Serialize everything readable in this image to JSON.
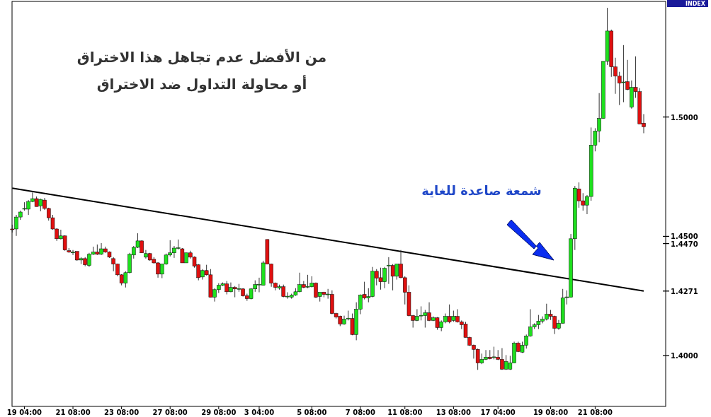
{
  "chart_data": {
    "type": "candlestick",
    "annotations": [
      "من الأفضل عدم تجاهل هذا الاختراق\nأو محاولة التداول ضد الاختراق",
      "شمعة صاعدة للغاية",
      "INDEX"
    ],
    "categories": [
      null,
      null,
      null,
      "19 04:00",
      null,
      null,
      null,
      null,
      null,
      null,
      null,
      null,
      null,
      null,
      null,
      "21 08:00",
      null,
      null,
      null,
      null,
      null,
      null,
      null,
      null,
      null,
      null,
      null,
      "23 08:00",
      null,
      null,
      null,
      null,
      null,
      null,
      null,
      null,
      null,
      null,
      null,
      "27 08:00",
      null,
      null,
      null,
      null,
      null,
      null,
      null,
      null,
      null,
      null,
      null,
      "29 08:00",
      null,
      null,
      null,
      null,
      null,
      null,
      null,
      null,
      null,
      "3 04:00",
      null,
      null,
      null,
      null,
      null,
      null,
      null,
      null,
      null,
      null,
      null,
      null,
      "5 08:00",
      null,
      null,
      null,
      null,
      null,
      null,
      null,
      null,
      null,
      null,
      null,
      "7 08:00",
      null,
      null,
      null,
      null,
      null,
      null,
      null,
      null,
      null,
      null,
      "11 08:00",
      null,
      null,
      null,
      null,
      null,
      null,
      null,
      null,
      null,
      null,
      null,
      "13 08:00",
      null,
      null,
      null,
      null,
      null,
      null,
      null,
      null,
      null,
      null,
      "17 04:00",
      null,
      null,
      null,
      null,
      null,
      null,
      null,
      null,
      null,
      null,
      null,
      null,
      "19 08:00",
      null,
      null,
      null,
      null,
      null,
      null,
      null,
      null,
      null,
      null,
      "21 08:00",
      null,
      null,
      null,
      null,
      null,
      null,
      null,
      null,
      null,
      null,
      null,
      null
    ],
    "colors": [
      "#e01010",
      "#1ee01e",
      "#1ee01e",
      "#1ee01e",
      "#1ee01e",
      "#1ee01e",
      "#e01010",
      "#1ee01e",
      "#e01010",
      "#e01010",
      "#e01010",
      "#e01010",
      "#1ee01e",
      "#e01010",
      "#e01010",
      "#1ee01e",
      "#e01010",
      "#1ee01e",
      "#e01010",
      "#1ee01e",
      "#1ee01e",
      "#e01010",
      "#1ee01e",
      "#e01010",
      "#e01010",
      "#e01010",
      "#e01010",
      "#e01010",
      "#1ee01e",
      "#1ee01e",
      "#1ee01e",
      "#1ee01e",
      "#e01010",
      "#1ee01e",
      "#e01010",
      "#e01010",
      "#e01010",
      "#1ee01e",
      "#1ee01e",
      "#1ee01e",
      "#1ee01e",
      "#1ee01e",
      "#e01010",
      "#1ee01e",
      "#e01010",
      "#e01010",
      "#e01010",
      "#1ee01e",
      "#e01010",
      "#e01010",
      "#1ee01e",
      "#1ee01e",
      "#1ee01e",
      "#e01010",
      "#1ee01e",
      "#e01010",
      "#1ee01e",
      "#e01010",
      "#e01010",
      "#1ee01e",
      "#1ee01e",
      "#1ee01e",
      "#1ee01e",
      "#e01010",
      "#e01010",
      "#e01010",
      "#1ee01e",
      "#e01010",
      "#1ee01e",
      "#1ee01e",
      "#1ee01e",
      "#1ee01e",
      "#e01010",
      "#1ee01e",
      "#1ee01e",
      "#e01010",
      "#1ee01e",
      "#e01010",
      "#1ee01e",
      "#e01010",
      "#e01010",
      "#e01010",
      "#1ee01e",
      "#1ee01e",
      "#e01010",
      "#1ee01e",
      "#1ee01e",
      "#e01010",
      "#1ee01e",
      "#1ee01e",
      "#e01010",
      "#e01010",
      "#1ee01e",
      "#1ee01e",
      "#e01010",
      "#1ee01e",
      "#e01010",
      "#e01010",
      "#e01010",
      "#e01010",
      "#1ee01e",
      "#1ee01e",
      "#1ee01e",
      "#e01010",
      "#1ee01e",
      "#e01010",
      "#1ee01e",
      "#1ee01e",
      "#e01010",
      "#1ee01e",
      "#e01010",
      "#e01010",
      "#e01010",
      "#e01010",
      "#e01010",
      "#e01010",
      "#1ee01e",
      "#1ee01e",
      "#e01010",
      "#1ee01e",
      "#e01010",
      "#e01010",
      "#1ee01e",
      "#1ee01e",
      "#1ee01e",
      "#e01010",
      "#1ee01e",
      "#1ee01e",
      "#1ee01e",
      "#1ee01e",
      "#1ee01e",
      "#1ee01e",
      "#1ee01e",
      "#e01010",
      "#e01010",
      "#1ee01e",
      "#1ee01e",
      "#1ee01e",
      "#1ee01e",
      "#1ee01e",
      "#e01010",
      "#e01010",
      "#1ee01e",
      "#1ee01e",
      "#1ee01e",
      "#1ee01e",
      "#1ee01e",
      "#1ee01e",
      "#e01010",
      "#e01010",
      "#e01010",
      "#1ee01e",
      "#e01010",
      "#1ee01e",
      "#e01010",
      "#e01010",
      "#e01010"
    ],
    "ohlc": [
      [
        1.4531,
        1.4549,
        1.4516,
        1.4528
      ],
      [
        1.4531,
        1.459,
        1.4502,
        1.4581
      ],
      [
        1.4581,
        1.4608,
        1.4569,
        1.4602
      ],
      [
        1.4614,
        1.4643,
        1.4608,
        1.4617
      ],
      [
        1.4614,
        1.4652,
        1.459,
        1.4646
      ],
      [
        1.4646,
        1.4684,
        1.4643,
        1.4658
      ],
      [
        1.4658,
        1.4667,
        1.4625,
        1.4625
      ],
      [
        1.4628,
        1.4658,
        1.4605,
        1.4655
      ],
      [
        1.4652,
        1.4661,
        1.4611,
        1.4617
      ],
      [
        1.4617,
        1.462,
        1.4566,
        1.4578
      ],
      [
        1.4578,
        1.459,
        1.4528,
        1.4531
      ],
      [
        1.4531,
        1.4534,
        1.4481,
        1.449
      ],
      [
        1.449,
        1.4528,
        1.4487,
        1.4502
      ],
      [
        1.4502,
        1.4504,
        1.444,
        1.4443
      ],
      [
        1.444,
        1.4451,
        1.4431,
        1.4434
      ],
      [
        1.4431,
        1.4443,
        1.4422,
        1.4434
      ],
      [
        1.4437,
        1.4437,
        1.4398,
        1.4401
      ],
      [
        1.4401,
        1.4413,
        1.4384,
        1.4407
      ],
      [
        1.4407,
        1.4413,
        1.4375,
        1.4381
      ],
      [
        1.4378,
        1.4431,
        1.4372,
        1.4425
      ],
      [
        1.4425,
        1.4457,
        1.4422,
        1.4434
      ],
      [
        1.4434,
        1.4466,
        1.4422,
        1.4425
      ],
      [
        1.4425,
        1.4472,
        1.4422,
        1.4448
      ],
      [
        1.4448,
        1.4457,
        1.4431,
        1.4434
      ],
      [
        1.4434,
        1.4437,
        1.441,
        1.4413
      ],
      [
        1.4407,
        1.4413,
        1.4354,
        1.4384
      ],
      [
        1.4384,
        1.4386,
        1.4333,
        1.4339
      ],
      [
        1.4339,
        1.4342,
        1.4295,
        1.4304
      ],
      [
        1.4304,
        1.4354,
        1.4286,
        1.4348
      ],
      [
        1.4348,
        1.4431,
        1.4345,
        1.4425
      ],
      [
        1.4422,
        1.446,
        1.4407,
        1.4454
      ],
      [
        1.4454,
        1.4513,
        1.4451,
        1.4481
      ],
      [
        1.4481,
        1.4484,
        1.4431,
        1.4431
      ],
      [
        1.4413,
        1.4443,
        1.4407,
        1.4428
      ],
      [
        1.4428,
        1.4431,
        1.4398,
        1.4401
      ],
      [
        1.4404,
        1.4413,
        1.4386,
        1.4389
      ],
      [
        1.4389,
        1.4392,
        1.4327,
        1.4342
      ],
      [
        1.4342,
        1.4384,
        1.4325,
        1.4384
      ],
      [
        1.4384,
        1.4428,
        1.4381,
        1.4422
      ],
      [
        1.4422,
        1.4484,
        1.4416,
        1.4431
      ],
      [
        1.4431,
        1.446,
        1.441,
        1.4451
      ],
      [
        1.4451,
        1.4487,
        1.4445,
        1.4451
      ],
      [
        1.4448,
        1.4451,
        1.4389,
        1.4389
      ],
      [
        1.4389,
        1.4431,
        1.4389,
        1.4431
      ],
      [
        1.4431,
        1.444,
        1.4407,
        1.4413
      ],
      [
        1.4413,
        1.4416,
        1.4369,
        1.4375
      ],
      [
        1.4381,
        1.4384,
        1.4316,
        1.4327
      ],
      [
        1.433,
        1.4363,
        1.4319,
        1.4357
      ],
      [
        1.4357,
        1.4381,
        1.4336,
        1.4339
      ],
      [
        1.4339,
        1.4363,
        1.4245,
        1.4245
      ],
      [
        1.4245,
        1.4283,
        1.4227,
        1.4277
      ],
      [
        1.4277,
        1.4304,
        1.4263,
        1.4295
      ],
      [
        1.4295,
        1.4307,
        1.4292,
        1.4301
      ],
      [
        1.4301,
        1.4313,
        1.4257,
        1.4268
      ],
      [
        1.4268,
        1.4307,
        1.4266,
        1.4286
      ],
      [
        1.4286,
        1.4292,
        1.4245,
        1.428
      ],
      [
        1.428,
        1.4301,
        1.4268,
        1.428
      ],
      [
        1.428,
        1.4283,
        1.4248,
        1.4251
      ],
      [
        1.4251,
        1.426,
        1.423,
        1.4239
      ],
      [
        1.4239,
        1.4283,
        1.4236,
        1.428
      ],
      [
        1.428,
        1.4316,
        1.4268,
        1.4298
      ],
      [
        1.4298,
        1.4327,
        1.4266,
        1.4298
      ],
      [
        1.4295,
        1.4398,
        1.4295,
        1.4389
      ],
      [
        1.4487,
        1.4487,
        1.4384,
        1.4384
      ],
      [
        1.4384,
        1.4386,
        1.4289,
        1.4304
      ],
      [
        1.4304,
        1.4307,
        1.4274,
        1.4286
      ],
      [
        1.4283,
        1.4298,
        1.4277,
        1.4289
      ],
      [
        1.4289,
        1.4298,
        1.4245,
        1.4248
      ],
      [
        1.4248,
        1.4266,
        1.4239,
        1.4248
      ],
      [
        1.4245,
        1.426,
        1.4239,
        1.4254
      ],
      [
        1.4254,
        1.4283,
        1.4251,
        1.4268
      ],
      [
        1.4268,
        1.4348,
        1.4266,
        1.4298
      ],
      [
        1.4298,
        1.4313,
        1.4283,
        1.4286
      ],
      [
        1.4289,
        1.4339,
        1.4283,
        1.4289
      ],
      [
        1.4289,
        1.4333,
        1.4286,
        1.4304
      ],
      [
        1.4304,
        1.4307,
        1.4242,
        1.4245
      ],
      [
        1.4248,
        1.4266,
        1.4227,
        1.4266
      ],
      [
        1.4266,
        1.4268,
        1.4245,
        1.4257
      ],
      [
        1.4257,
        1.428,
        1.4239,
        1.4257
      ],
      [
        1.4257,
        1.4274,
        1.4174,
        1.4177
      ],
      [
        1.4177,
        1.418,
        1.4156,
        1.4162
      ],
      [
        1.4165,
        1.4168,
        1.4124,
        1.4133
      ],
      [
        1.4133,
        1.4168,
        1.413,
        1.4153
      ],
      [
        1.4156,
        1.4189,
        1.4148,
        1.4156
      ],
      [
        1.4156,
        1.4177,
        1.4086,
        1.4089
      ],
      [
        1.4089,
        1.4224,
        1.4065,
        1.4195
      ],
      [
        1.4195,
        1.4257,
        1.4174,
        1.4254
      ],
      [
        1.4257,
        1.431,
        1.4236,
        1.4242
      ],
      [
        1.4242,
        1.4283,
        1.4224,
        1.4248
      ],
      [
        1.4248,
        1.4372,
        1.4245,
        1.4354
      ],
      [
        1.4354,
        1.4363,
        1.4295,
        1.4325
      ],
      [
        1.4327,
        1.4369,
        1.4277,
        1.431
      ],
      [
        1.431,
        1.4372,
        1.4283,
        1.4366
      ],
      [
        1.4378,
        1.4413,
        1.4301,
        1.4378
      ],
      [
        1.4378,
        1.4384,
        1.4274,
        1.4333
      ],
      [
        1.4333,
        1.4384,
        1.4319,
        1.4384
      ],
      [
        1.4384,
        1.4443,
        1.4325,
        1.4327
      ],
      [
        1.4327,
        1.4333,
        1.4215,
        1.4266
      ],
      [
        1.4266,
        1.4295,
        1.4165,
        1.4168
      ],
      [
        1.4168,
        1.4171,
        1.4118,
        1.4148
      ],
      [
        1.4148,
        1.4195,
        1.4145,
        1.4165
      ],
      [
        1.4168,
        1.4207,
        1.4148,
        1.4168
      ],
      [
        1.4168,
        1.4192,
        1.4118,
        1.418
      ],
      [
        1.418,
        1.4224,
        1.4145,
        1.4148
      ],
      [
        1.4148,
        1.4165,
        1.4145,
        1.4159
      ],
      [
        1.4159,
        1.4162,
        1.4109,
        1.4118
      ],
      [
        1.4118,
        1.4148,
        1.4103,
        1.4142
      ],
      [
        1.4142,
        1.4177,
        1.4136,
        1.4165
      ],
      [
        1.4165,
        1.4215,
        1.4136,
        1.4142
      ],
      [
        1.4148,
        1.4189,
        1.4142,
        1.4165
      ],
      [
        1.4165,
        1.4195,
        1.4139,
        1.4142
      ],
      [
        1.4142,
        1.4148,
        1.4112,
        1.413
      ],
      [
        1.4133,
        1.4142,
        1.4077,
        1.4077
      ],
      [
        1.4077,
        1.408,
        1.4041,
        1.4044
      ],
      [
        1.4044,
        1.4047,
        1.3988,
        1.4027
      ],
      [
        1.4027,
        1.403,
        1.3941,
        1.397
      ],
      [
        1.397,
        1.4009,
        1.3965,
        1.3985
      ],
      [
        1.3985,
        1.4024,
        1.3982,
        1.3994
      ],
      [
        1.3994,
        1.4024,
        1.3985,
        1.3988
      ],
      [
        1.3994,
        1.4038,
        1.3985,
        1.3994
      ],
      [
        1.3994,
        1.4024,
        1.3982,
        1.3985
      ],
      [
        1.3985,
        1.4032,
        1.3941,
        1.3944
      ],
      [
        1.3944,
        1.4003,
        1.3941,
        1.3976
      ],
      [
        1.3944,
        1.4,
        1.3941,
        1.397
      ],
      [
        1.397,
        1.4059,
        1.397,
        1.4053
      ],
      [
        1.4053,
        1.4059,
        1.4015,
        1.4018
      ],
      [
        1.4015,
        1.4059,
        1.4012,
        1.4044
      ],
      [
        1.4044,
        1.4089,
        1.403,
        1.4083
      ],
      [
        1.4083,
        1.4195,
        1.408,
        1.4121
      ],
      [
        1.4121,
        1.4136,
        1.4112,
        1.413
      ],
      [
        1.413,
        1.4171,
        1.4112,
        1.4145
      ],
      [
        1.4145,
        1.4165,
        1.4136,
        1.4153
      ],
      [
        1.4153,
        1.4218,
        1.4148,
        1.4174
      ],
      [
        1.4174,
        1.4192,
        1.415,
        1.4165
      ],
      [
        1.4165,
        1.4168,
        1.4091,
        1.4115
      ],
      [
        1.4115,
        1.415,
        1.4109,
        1.4136
      ],
      [
        1.4136,
        1.428,
        1.4136,
        1.4242
      ],
      [
        1.4245,
        1.4274,
        1.4215,
        1.4245
      ],
      [
        1.4245,
        1.451,
        1.4245,
        1.449
      ],
      [
        1.449,
        1.4711,
        1.4443,
        1.4702
      ],
      [
        1.4699,
        1.4726,
        1.462,
        1.4649
      ],
      [
        1.4649,
        1.4681,
        1.4608,
        1.4631
      ],
      [
        1.4631,
        1.4673,
        1.4593,
        1.4667
      ],
      [
        1.4667,
        1.4956,
        1.4649,
        1.4882
      ],
      [
        1.4882,
        1.4953,
        1.4856,
        1.4941
      ],
      [
        1.4941,
        1.51,
        1.4894,
        1.4994
      ],
      [
        1.4994,
        1.5233,
        1.4994,
        1.5233
      ],
      [
        1.5233,
        1.5457,
        1.5218,
        1.536
      ],
      [
        1.536,
        1.5366,
        1.5168,
        1.521
      ],
      [
        1.521,
        1.5248,
        1.5097,
        1.5171
      ],
      [
        1.5171,
        1.5189,
        1.505,
        1.5142
      ],
      [
        1.5145,
        1.5301,
        1.5062,
        1.5145
      ],
      [
        1.5148,
        1.5239,
        1.5112,
        1.5115
      ],
      [
        1.5041,
        1.5153,
        1.5035,
        1.5124
      ],
      [
        1.5124,
        1.5254,
        1.508,
        1.5106
      ],
      [
        1.5106,
        1.5121,
        1.4971,
        1.4971
      ],
      [
        1.4974,
        1.5012,
        1.4932,
        1.4959
      ]
    ],
    "series": [
      {
        "type": "line",
        "color": "#000000",
        "values": [
          1.4702,
          null,
          null,
          null,
          null,
          null,
          null,
          null,
          null,
          null,
          null,
          null,
          null,
          null,
          null,
          null,
          null,
          null,
          null,
          null,
          null,
          null,
          null,
          null,
          null,
          null,
          null,
          null,
          null,
          null,
          null,
          null,
          null,
          null,
          null,
          null,
          null,
          null,
          null,
          null,
          null,
          null,
          null,
          null,
          null,
          null,
          null,
          null,
          null,
          null,
          null,
          null,
          null,
          null,
          null,
          null,
          null,
          null,
          null,
          null,
          null,
          null,
          null,
          null,
          null,
          null,
          null,
          null,
          null,
          null,
          null,
          null,
          null,
          null,
          null,
          null,
          null,
          null,
          null,
          null,
          null,
          null,
          null,
          null,
          null,
          null,
          null,
          null,
          null,
          null,
          null,
          null,
          null,
          null,
          null,
          null,
          null,
          null,
          null,
          null,
          null,
          null,
          null,
          null,
          null,
          null,
          null,
          null,
          null,
          null,
          null,
          null,
          null,
          null,
          null,
          null,
          null,
          null,
          null,
          null,
          null,
          null,
          null,
          null,
          null,
          null,
          null,
          null,
          null,
          null,
          null,
          null,
          null,
          null,
          null,
          null,
          null,
          null,
          null,
          null,
          null,
          null,
          null,
          null,
          null,
          null,
          null,
          null,
          null,
          null,
          null,
          null,
          null,
          null,
          null,
          null,
          1.4271
        ]
      }
    ],
    "ylim": [
      1.3788,
      1.5484
    ],
    "yticks": [
      {
        "value": 1.4,
        "label": "1.4000"
      },
      {
        "value": 1.4271,
        "label": "1.4271"
      },
      {
        "value": 1.447,
        "label": "1.4470"
      },
      {
        "value": 1.45,
        "label": "1.4500"
      },
      {
        "value": 1.5,
        "label": "1.5000"
      }
    ],
    "grid": false
  }
}
